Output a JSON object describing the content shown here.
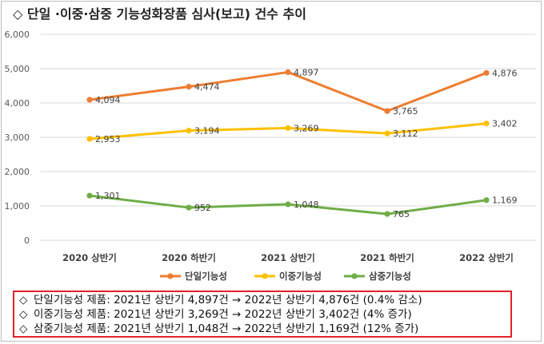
{
  "title": "◇ 단일 ·이중·삼중 기능성화장품 심사(보고) 건수 추이",
  "chart_data": {
    "type": "line",
    "categories": [
      "2020 상반기",
      "2020 하반기",
      "2021 상반기",
      "2021 하반기",
      "2022 상반기"
    ],
    "ylim": [
      0,
      6000
    ],
    "yticks": [
      0,
      1000,
      2000,
      3000,
      4000,
      5000,
      6000
    ],
    "ytick_labels": [
      "0",
      "1,000",
      "2,000",
      "3,000",
      "4,000",
      "5,000",
      "6,000"
    ],
    "grid": true,
    "legend_position": "bottom",
    "series": [
      {
        "name": "단일기능성",
        "color": "#ed7d31",
        "values": [
          4094,
          4474,
          4897,
          3765,
          4876
        ],
        "labels": [
          "4,094",
          "4,474",
          "4,897",
          "3,765",
          "4,876"
        ]
      },
      {
        "name": "이중기능성",
        "color": "#ffc000",
        "values": [
          2953,
          3194,
          3269,
          3112,
          3402
        ],
        "labels": [
          "2,953",
          "3,194",
          "3,269",
          "3,112",
          "3,402"
        ]
      },
      {
        "name": "삼중기능성",
        "color": "#70ad47",
        "values": [
          1301,
          952,
          1048,
          765,
          1169
        ],
        "labels": [
          "1,301",
          "952",
          "1,048",
          "765",
          "1,169"
        ]
      }
    ]
  },
  "notes": [
    {
      "diamond": "◇",
      "text": "단일기능성 제품: 2021년 상반기 4,897건 → 2022년 상반기 4,876건 (0.4% 감소)"
    },
    {
      "diamond": "◇",
      "text": "이중기능성 제품: 2021년 상반기 3,269건 → 2022년 상반기 3,402건 (4% 증가)"
    },
    {
      "diamond": "◇",
      "text": "삼중기능성 제품: 2021년 상반기 1,048건 → 2022년 상반기 1,169건 (12% 증가)"
    }
  ]
}
